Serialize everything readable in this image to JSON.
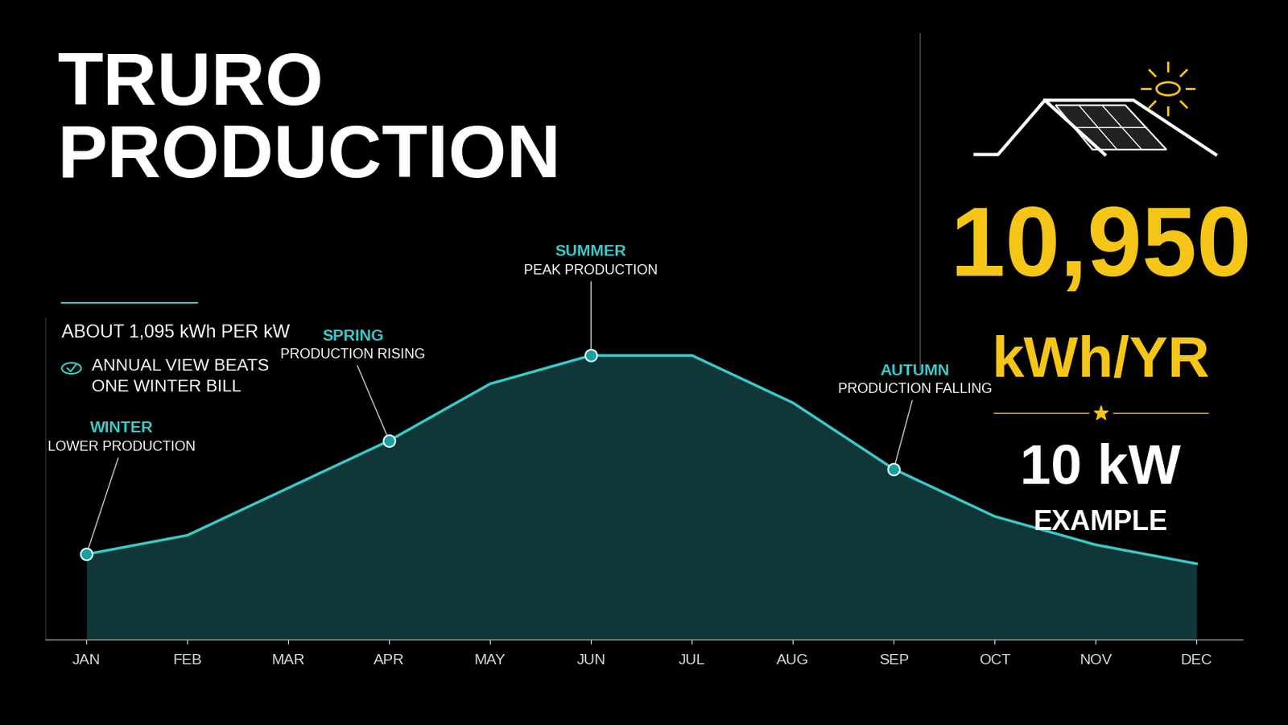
{
  "chart_data": {
    "type": "area",
    "title": "TRURO\nPRODUCTION",
    "subtitle": "ABOUT 1,095 kWh PER kW",
    "checklist": [
      "ANNUAL VIEW BEATS\nONE WINTER BILL"
    ],
    "categories": [
      "JAN",
      "FEB",
      "MAR",
      "APR",
      "MAY",
      "JUN",
      "JUL",
      "AUG",
      "SEP",
      "OCT",
      "NOV",
      "DEC"
    ],
    "values": [
      450,
      550,
      800,
      1050,
      1350,
      1500,
      1500,
      1250,
      900,
      650,
      500,
      400
    ],
    "color": "#3cc8c8",
    "ylim": [
      0,
      1700
    ],
    "tick_labels": "x",
    "grid": false,
    "annotations": [
      {
        "category": "JAN",
        "label": "WINTER",
        "text": "LOWER PRODUCTION"
      },
      {
        "category": "APR",
        "label": "SPRING",
        "text": "PRODUCTION RISING"
      },
      {
        "category": "JUN",
        "label": "SUMMER",
        "text": "PEAK PRODUCTION"
      },
      {
        "category": "SEP",
        "label": "AUTUMN",
        "text": "PRODUCTION FALLING"
      }
    ],
    "highlight": {
      "value": "10,950",
      "unit": "kWh/YR",
      "system": "10 kW",
      "system_label": "EXAMPLE"
    }
  }
}
